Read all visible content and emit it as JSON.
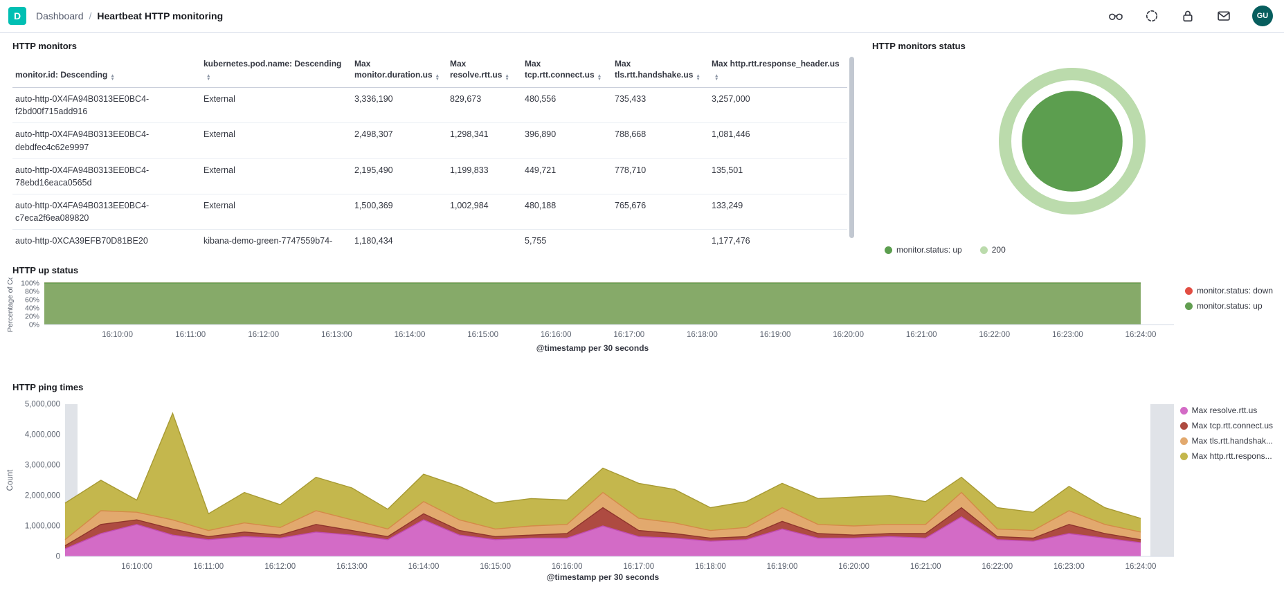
{
  "header": {
    "logo_letter": "D",
    "breadcrumb_root": "Dashboard",
    "breadcrumb_sep": "/",
    "breadcrumb_current": "Heartbeat HTTP monitoring",
    "icons": [
      "glasses-icon",
      "community-icon",
      "lock-icon",
      "mail-icon"
    ],
    "avatar_initials": "GU"
  },
  "monitors_panel": {
    "title": "HTTP monitors",
    "columns": [
      "monitor.id: Descending",
      "kubernetes.pod.name: Descending",
      "Max monitor.duration.us",
      "Max resolve.rtt.us",
      "Max tcp.rtt.connect.us",
      "Max tls.rtt.handshake.us",
      "Max http.rtt.response_header.us"
    ],
    "rows": [
      [
        "auto-http-0X4FA94B0313EE0BC4-f2bd00f715add916",
        "External",
        "3,336,190",
        "829,673",
        "480,556",
        "735,433",
        "3,257,000"
      ],
      [
        "auto-http-0X4FA94B0313EE0BC4-debdfec4c62e9997",
        "External",
        "2,498,307",
        "1,298,341",
        "396,890",
        "788,668",
        "1,081,446"
      ],
      [
        "auto-http-0X4FA94B0313EE0BC4-78ebd16eaca0565d",
        "External",
        "2,195,490",
        "1,199,833",
        "449,721",
        "778,710",
        "135,501"
      ],
      [
        "auto-http-0X4FA94B0313EE0BC4-c7eca2f6ea089820",
        "External",
        "1,500,369",
        "1,002,984",
        "480,188",
        "765,676",
        "133,249"
      ],
      [
        "auto-http-0XCA39EFB70D81BE20",
        "kibana-demo-green-7747559b74-",
        "1,180,434",
        "",
        "5,755",
        "",
        "1,177,476"
      ]
    ]
  },
  "status_panel": {
    "title": "HTTP monitors status",
    "legend": [
      {
        "label": "monitor.status: up",
        "color": "#5C9E4F"
      },
      {
        "label": "200",
        "color": "#BBDBAC"
      }
    ]
  },
  "up_panel": {
    "title": "HTTP up status",
    "legend": [
      {
        "label": "monitor.status: down",
        "color": "#E24D42"
      },
      {
        "label": "monitor.status: up",
        "color": "#629E51"
      }
    ]
  },
  "ping_panel": {
    "title": "HTTP ping times",
    "legend": [
      {
        "label": "Max resolve.rtt.us",
        "color": "#D36BC6"
      },
      {
        "label": "Max tcp.rtt.connect.us",
        "color": "#AE4B41"
      },
      {
        "label": "Max tls.rtt.handshak...",
        "color": "#E2A96E"
      },
      {
        "label": "Max http.rtt.respons...",
        "color": "#C4B74D"
      }
    ]
  },
  "chart_data": [
    {
      "id": "status-donut",
      "type": "pie",
      "title": "HTTP monitors status",
      "rings": [
        {
          "slices": [
            {
              "label": "monitor.status: up",
              "value": 100,
              "color": "#5C9E4F"
            }
          ]
        },
        {
          "slices": [
            {
              "label": "200",
              "value": 100,
              "color": "#BBDBAC"
            }
          ]
        }
      ],
      "legend_position": "bottom"
    },
    {
      "id": "up-status",
      "type": "area",
      "title": "HTTP up status",
      "xlabel": "@timestamp per 30 seconds",
      "ylabel": "Percentage of Co",
      "ylim": [
        0,
        100
      ],
      "yticks": [
        "0%",
        "20%",
        "40%",
        "60%",
        "80%",
        "100%"
      ],
      "x": [
        "16:09:00",
        "16:09:30",
        "16:10:00",
        "16:10:30",
        "16:11:00",
        "16:11:30",
        "16:12:00",
        "16:12:30",
        "16:13:00",
        "16:13:30",
        "16:14:00",
        "16:14:30",
        "16:15:00",
        "16:15:30",
        "16:16:00",
        "16:16:30",
        "16:17:00",
        "16:17:30",
        "16:18:00",
        "16:18:30",
        "16:19:00",
        "16:19:30",
        "16:20:00",
        "16:20:30",
        "16:21:00",
        "16:21:30",
        "16:22:00",
        "16:22:30",
        "16:23:00",
        "16:23:30",
        "16:24:00"
      ],
      "xticks": [
        "16:10:00",
        "16:11:00",
        "16:12:00",
        "16:13:00",
        "16:14:00",
        "16:15:00",
        "16:16:00",
        "16:17:00",
        "16:18:00",
        "16:19:00",
        "16:20:00",
        "16:21:00",
        "16:22:00",
        "16:23:00",
        "16:24:00"
      ],
      "xtick_indices": [
        2,
        4,
        6,
        8,
        10,
        12,
        14,
        16,
        18,
        20,
        22,
        24,
        26,
        28,
        30
      ],
      "series": [
        {
          "name": "monitor.status: up",
          "color": "#7EB26D",
          "stroke": "#629E51",
          "opacity": 0.92,
          "values": [
            100,
            100,
            100,
            100,
            100,
            100,
            100,
            100,
            100,
            100,
            100,
            100,
            100,
            100,
            100,
            100,
            100,
            100,
            100,
            100,
            100,
            100,
            100,
            100,
            100,
            100,
            100,
            100,
            100,
            100,
            100
          ]
        },
        {
          "name": "monitor.status: down",
          "color": "#E24D42",
          "stroke": "#E24D42",
          "opacity": 1,
          "values": [
            0,
            0,
            0,
            0,
            0,
            0,
            0,
            0,
            0,
            0,
            0,
            0,
            0,
            0,
            0,
            0,
            0,
            0,
            0,
            0,
            0,
            0,
            0,
            0,
            0,
            0,
            0,
            0,
            0,
            0,
            0
          ]
        }
      ],
      "legend_position": "right",
      "grid": false
    },
    {
      "id": "ping-times",
      "type": "area",
      "stacked": true,
      "title": "HTTP ping times",
      "xlabel": "@timestamp per 30 seconds",
      "ylabel": "Count",
      "ylim": [
        0,
        5000000
      ],
      "yticks": [
        "0",
        "1,000,000",
        "2,000,000",
        "3,000,000",
        "4,000,000",
        "5,000,000"
      ],
      "x": [
        "16:09:00",
        "16:09:30",
        "16:10:00",
        "16:10:30",
        "16:11:00",
        "16:11:30",
        "16:12:00",
        "16:12:30",
        "16:13:00",
        "16:13:30",
        "16:14:00",
        "16:14:30",
        "16:15:00",
        "16:15:30",
        "16:16:00",
        "16:16:30",
        "16:17:00",
        "16:17:30",
        "16:18:00",
        "16:18:30",
        "16:19:00",
        "16:19:30",
        "16:20:00",
        "16:20:30",
        "16:21:00",
        "16:21:30",
        "16:22:00",
        "16:22:30",
        "16:23:00",
        "16:23:30",
        "16:24:00"
      ],
      "xticks": [
        "16:10:00",
        "16:11:00",
        "16:12:00",
        "16:13:00",
        "16:14:00",
        "16:15:00",
        "16:16:00",
        "16:17:00",
        "16:18:00",
        "16:19:00",
        "16:20:00",
        "16:21:00",
        "16:22:00",
        "16:23:00",
        "16:24:00"
      ],
      "xtick_indices": [
        2,
        4,
        6,
        8,
        10,
        12,
        14,
        16,
        18,
        20,
        22,
        24,
        26,
        28,
        30
      ],
      "edge_band_color": "#E0E3E8",
      "series": [
        {
          "name": "Max resolve.rtt.us",
          "color": "#D36BC6",
          "stroke": "#C14CB2",
          "opacity": 1,
          "values": [
            250000,
            750000,
            1050000,
            700000,
            550000,
            650000,
            600000,
            800000,
            700000,
            550000,
            1200000,
            700000,
            550000,
            600000,
            600000,
            1000000,
            650000,
            600000,
            500000,
            550000,
            900000,
            600000,
            600000,
            650000,
            600000,
            1300000,
            550000,
            500000,
            750000,
            600000,
            450000
          ]
        },
        {
          "name": "Max tcp.rtt.connect.us",
          "color": "#AE4B41",
          "stroke": "#8F352C",
          "opacity": 1,
          "values": [
            100000,
            300000,
            150000,
            200000,
            100000,
            150000,
            100000,
            250000,
            150000,
            100000,
            200000,
            150000,
            100000,
            100000,
            150000,
            600000,
            200000,
            150000,
            100000,
            100000,
            250000,
            150000,
            100000,
            100000,
            150000,
            300000,
            100000,
            100000,
            300000,
            150000,
            100000
          ]
        },
        {
          "name": "Max tls.rtt.handshak...",
          "color": "#E2A96E",
          "stroke": "#D48A48",
          "opacity": 1,
          "values": [
            200000,
            450000,
            250000,
            300000,
            200000,
            300000,
            250000,
            450000,
            350000,
            250000,
            400000,
            350000,
            250000,
            300000,
            300000,
            500000,
            400000,
            350000,
            250000,
            300000,
            450000,
            300000,
            300000,
            300000,
            300000,
            500000,
            250000,
            250000,
            450000,
            300000,
            250000
          ]
        },
        {
          "name": "Max http.rtt.respons...",
          "color": "#C4B74D",
          "stroke": "#A79A33",
          "opacity": 1,
          "values": [
            1200000,
            1000000,
            400000,
            3500000,
            550000,
            1000000,
            750000,
            1100000,
            1050000,
            650000,
            900000,
            1100000,
            850000,
            900000,
            800000,
            800000,
            1150000,
            1100000,
            750000,
            850000,
            800000,
            850000,
            950000,
            950000,
            750000,
            500000,
            700000,
            600000,
            800000,
            550000,
            450000
          ]
        }
      ],
      "legend_position": "right",
      "grid": false
    }
  ]
}
